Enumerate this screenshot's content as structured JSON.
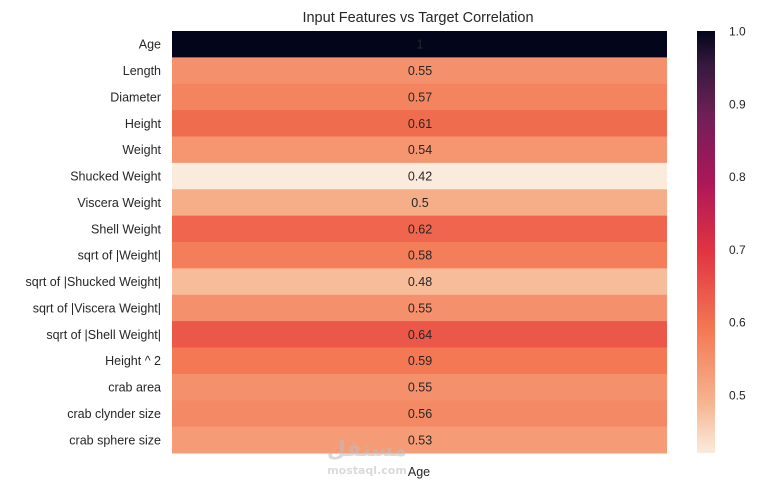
{
  "chart_data": {
    "type": "heatmap",
    "title": "Input Features vs Target Correlation",
    "columns": [
      "Age"
    ],
    "rows": [
      "Age",
      "Length",
      "Diameter",
      "Height",
      "Weight",
      "Shucked Weight",
      "Viscera Weight",
      "Shell Weight",
      "sqrt of |Weight|",
      "sqrt of |Shucked Weight|",
      "sqrt of |Viscera Weight|",
      "sqrt of |Shell Weight|",
      "Height ^ 2",
      "crab area",
      "crab clynder size",
      "crab sphere size"
    ],
    "values": [
      1,
      0.55,
      0.57,
      0.61,
      0.54,
      0.42,
      0.5,
      0.62,
      0.58,
      0.48,
      0.55,
      0.64,
      0.59,
      0.55,
      0.56,
      0.53
    ],
    "annotations": [
      "1",
      "0.55",
      "0.57",
      "0.61",
      "0.54",
      "0.42",
      "0.5",
      "0.62",
      "0.58",
      "0.48",
      "0.55",
      "0.64",
      "0.59",
      "0.55",
      "0.56",
      "0.53"
    ],
    "colorbar": {
      "colormap": "rocket_r",
      "vmin": 0.42,
      "vmax": 1.0,
      "ticks": [
        0.5,
        0.6,
        0.7,
        0.8,
        0.9,
        1.0
      ],
      "tick_labels": [
        "0.5",
        "0.6",
        "0.7",
        "0.8",
        "0.9",
        "1.0"
      ]
    },
    "grid": false
  },
  "watermark": {
    "text": "mostaql.com",
    "logo_text": "مستقل"
  }
}
